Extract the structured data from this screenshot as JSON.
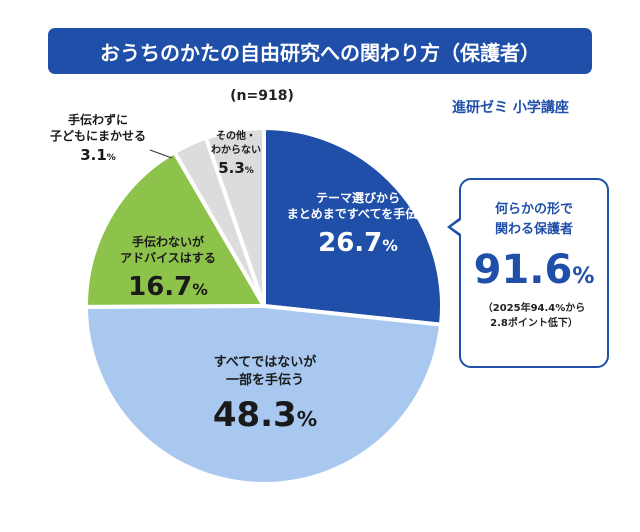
{
  "title": "おうちのかたの自由研究への関わり方（保護者）",
  "sample": "(n=918)",
  "brand": "進研ゼミ 小学講座",
  "callout": {
    "text_line1": "何らかの形で",
    "text_line2": "関わる保護者",
    "value": "91.6",
    "unit": "%",
    "note_line1": "（2025年94.4%から",
    "note_line2": "2.8ポイント低下）"
  },
  "chart_data": {
    "type": "pie",
    "title": "おうちのかたの自由研究への関わり方（保護者）",
    "unit": "%",
    "slices": [
      {
        "label_line1": "テーマ選びから",
        "label_line2": "まとめまですべてを手伝う",
        "value": 26.7,
        "value_text": "26.7",
        "color": "#1f4fa8"
      },
      {
        "label_line1": "すべてではないが",
        "label_line2": "一部を手伝う",
        "value": 48.3,
        "value_text": "48.3",
        "color": "#a8c8f0"
      },
      {
        "label_line1": "手伝わないが",
        "label_line2": "アドバイスはする",
        "value": 16.7,
        "value_text": "16.7",
        "color": "#8dc34a"
      },
      {
        "label_line1": "手伝わずに",
        "label_line2": "子どもにまかせる",
        "value": 3.1,
        "value_text": "3.1",
        "color": "#dcdcdc"
      },
      {
        "label_line1": "その他・",
        "label_line2": "わからない",
        "value": 5.3,
        "value_text": "5.3",
        "color": "#dcdcdc"
      }
    ]
  }
}
